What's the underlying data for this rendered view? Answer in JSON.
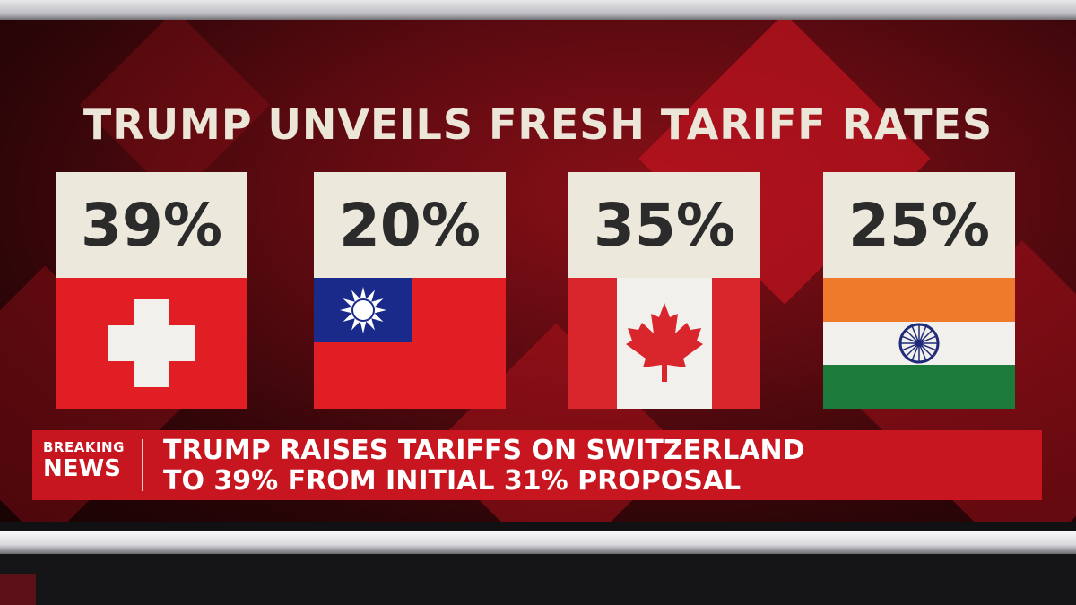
{
  "headline": "TRUMP UNVEILS FRESH TARIFF RATES",
  "cards": [
    {
      "rate": "39%",
      "country_flag": "switzerland-flag"
    },
    {
      "rate": "20%",
      "country_flag": "taiwan-flag"
    },
    {
      "rate": "35%",
      "country_flag": "canada-flag"
    },
    {
      "rate": "25%",
      "country_flag": "india-flag"
    }
  ],
  "ticker": {
    "label_top": "BREAKING",
    "label_bottom": "NEWS",
    "line1": "TRUMP RAISES TARIFFS ON SWITZERLAND",
    "line2": "TO 39% FROM INITIAL 31% PROPOSAL"
  },
  "colors": {
    "background_red": "#5a0a10",
    "ticker_red": "#c7161f",
    "card_cream": "#ece8dc"
  }
}
